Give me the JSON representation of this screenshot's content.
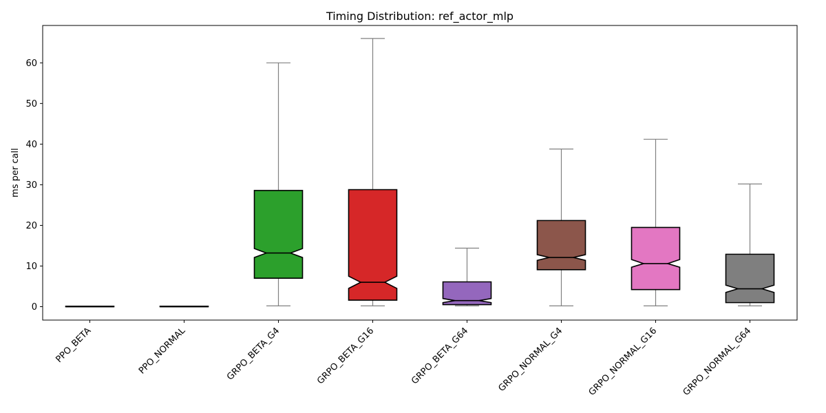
{
  "chart_data": {
    "type": "box",
    "title": "Timing Distribution: ref_actor_mlp",
    "xlabel": "",
    "ylabel": "ms per call",
    "ylim": [
      -3.3,
      69.2
    ],
    "yticks": [
      0,
      10,
      20,
      30,
      40,
      50,
      60
    ],
    "grid": false,
    "notched": true,
    "categories": [
      "PPO_BETA",
      "PPO_NORMAL",
      "GRPO_BETA_G4",
      "GRPO_BETA_G16",
      "GRPO_BETA_G64",
      "GRPO_NORMAL_G4",
      "GRPO_NORMAL_G16",
      "GRPO_NORMAL_G64"
    ],
    "boxes": [
      {
        "category": "PPO_BETA",
        "whisker_low": 0.0,
        "q1": 0.0,
        "median": 0.0,
        "q3": 0.1,
        "whisker_high": 0.1,
        "notch_low": 0.0,
        "notch_high": 0.0,
        "color": "#1f77b4"
      },
      {
        "category": "PPO_NORMAL",
        "whisker_low": 0.0,
        "q1": 0.0,
        "median": 0.0,
        "q3": 0.1,
        "whisker_high": 0.1,
        "notch_low": 0.0,
        "notch_high": 0.0,
        "color": "#ff7f0e"
      },
      {
        "category": "GRPO_BETA_G4",
        "whisker_low": 0.2,
        "q1": 7.0,
        "median": 13.2,
        "q3": 28.6,
        "whisker_high": 60.0,
        "notch_low": 12.1,
        "notch_high": 14.3,
        "color": "#2ca02c"
      },
      {
        "category": "GRPO_BETA_G16",
        "whisker_low": 0.2,
        "q1": 1.6,
        "median": 6.0,
        "q3": 28.8,
        "whisker_high": 66.0,
        "notch_low": 4.5,
        "notch_high": 7.5,
        "color": "#d62728"
      },
      {
        "category": "GRPO_BETA_G64",
        "whisker_low": 0.2,
        "q1": 0.5,
        "median": 1.5,
        "q3": 6.1,
        "whisker_high": 14.4,
        "notch_low": 1.0,
        "notch_high": 2.0,
        "color": "#9467bd"
      },
      {
        "category": "GRPO_NORMAL_G4",
        "whisker_low": 0.2,
        "q1": 9.1,
        "median": 12.1,
        "q3": 21.2,
        "whisker_high": 38.8,
        "notch_low": 11.4,
        "notch_high": 12.8,
        "color": "#8c564b"
      },
      {
        "category": "GRPO_NORMAL_G16",
        "whisker_low": 0.2,
        "q1": 4.2,
        "median": 10.6,
        "q3": 19.5,
        "whisker_high": 41.2,
        "notch_low": 9.7,
        "notch_high": 11.6,
        "color": "#e377c2"
      },
      {
        "category": "GRPO_NORMAL_G64",
        "whisker_low": 0.2,
        "q1": 1.0,
        "median": 4.4,
        "q3": 12.9,
        "whisker_high": 30.2,
        "notch_low": 3.5,
        "notch_high": 5.3,
        "color": "#7f7f7f"
      }
    ],
    "whisker_color": "#808080",
    "edge_color": "#000000"
  }
}
